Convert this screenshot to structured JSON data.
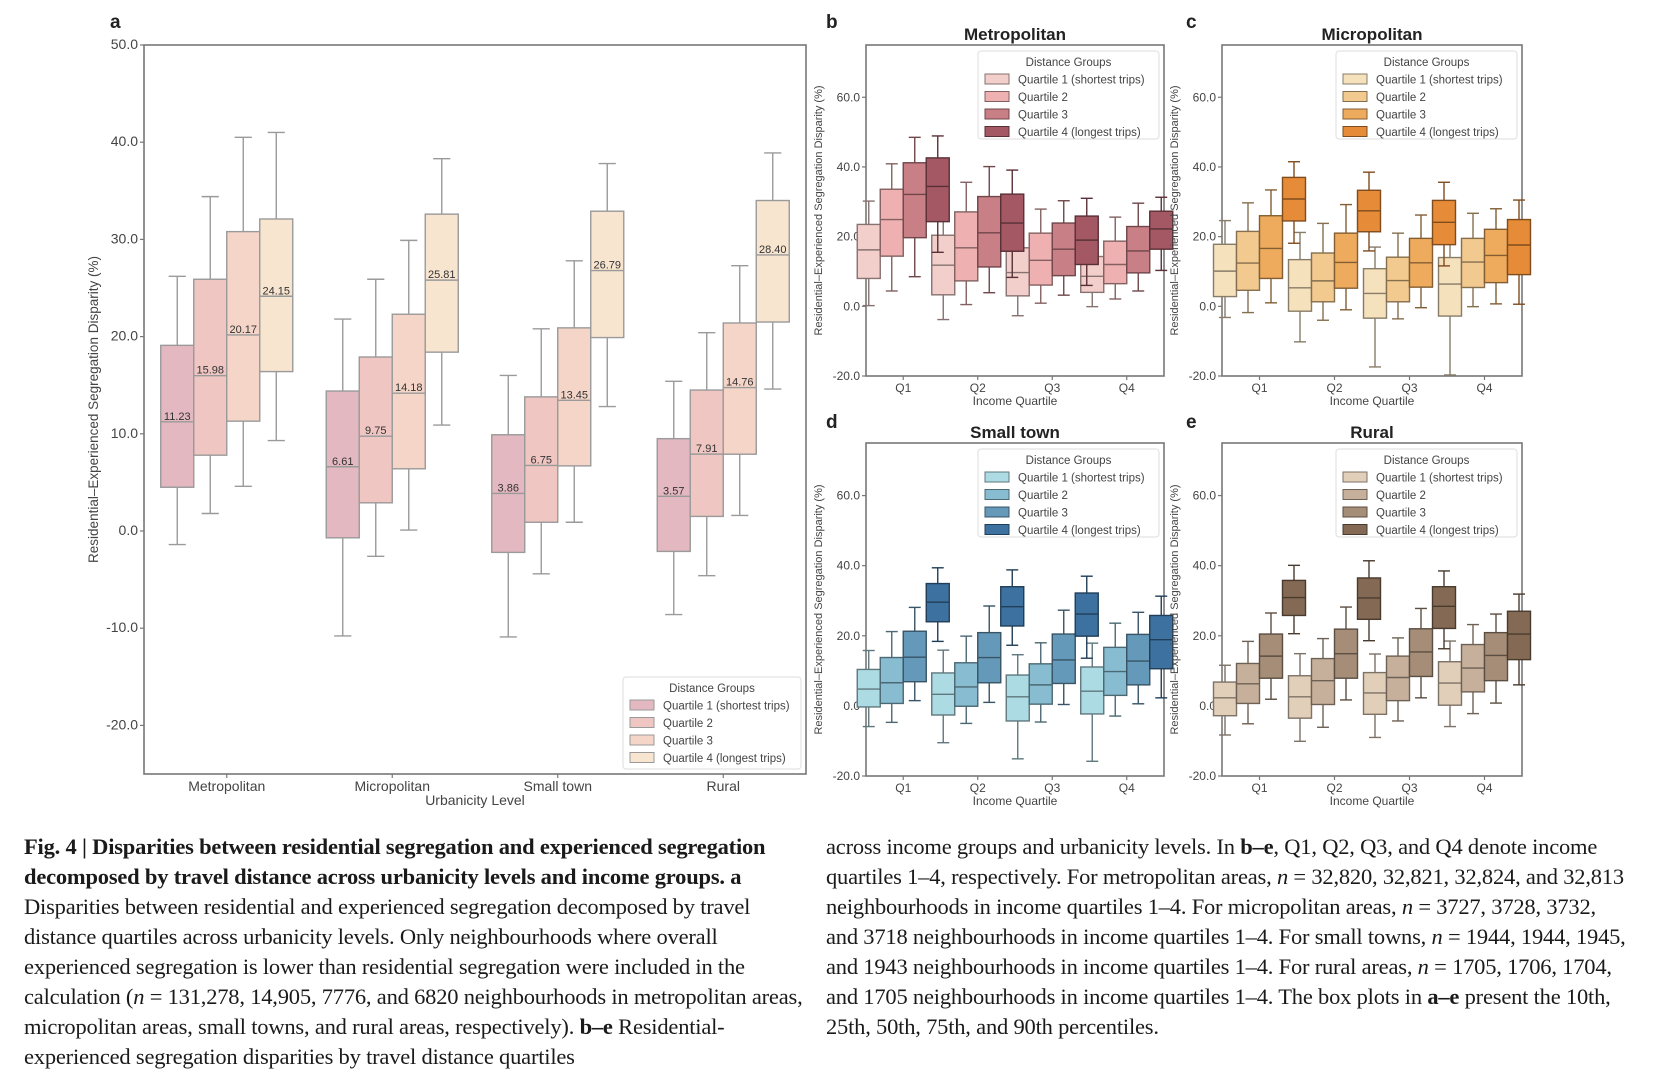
{
  "figure": {
    "caption_left": {
      "title": "Fig. 4 | Disparities between residential segregation and experienced segregation decomposed by travel distance across urbanicity levels and income groups.",
      "a_label": "a",
      "a_text": "Disparities between residential and experienced segregation decomposed by travel distance quartiles across urbanicity levels. Only neighbourhoods where overall experienced segregation is lower than residential segregation were included in the calculation (",
      "n_symbol": "n",
      "a_counts": " = 131,278, 14,905, 7776, and 6820 neighbourhoods in metropolitan areas, micropolitan areas, small towns, and rural areas, respectively).",
      "be_label": "b–e",
      "be_text": "Residential-experienced segregation disparities by travel distance quartiles"
    },
    "caption_right": {
      "p1": "across income groups and urbanicity levels. In ",
      "be_label": "b–e",
      "p2": ", Q1, Q2, Q3, and Q4 denote income quartiles 1–4, respectively. For metropolitan areas, ",
      "n1": "n",
      "p3": " = 32,820, 32,821, 32,824, and 32,813 neighbourhoods in income quartiles 1–4. For micropolitan areas, ",
      "n2": "n",
      "p4": " = 3727, 3728, 3732, and 3718 neighbourhoods in income quartiles 1–4. For small towns, ",
      "n3": "n",
      "p5": " = 1944, 1944, 1945, and 1943 neighbourhoods in income quartiles 1–4. For rural areas, ",
      "n4": "n",
      "p6": " = 1705, 1706, 1704, and 1705 neighbourhoods in income quartiles 1–4. The box plots in ",
      "ae_label": "a–e",
      "p7": " present the 10th, 25th, 50th, 75th, and 90th percentiles."
    }
  },
  "chart_data": [
    {
      "panel": "a",
      "type": "box",
      "title": "",
      "xlabel": "Urbanicity Level",
      "ylabel": "Residential–Experienced Segregation Disparity (%)",
      "ylim": [
        -25,
        50
      ],
      "yticks": [
        -20.0,
        -10.0,
        0.0,
        10.0,
        20.0,
        30.0,
        40.0,
        50.0
      ],
      "categories": [
        "Metropolitan",
        "Micropolitan",
        "Small town",
        "Rural"
      ],
      "show_median_labels": true,
      "legend": {
        "title": "Distance Groups",
        "position": "lower-right"
      },
      "series": [
        {
          "name": "Quartile 1 (shortest trips)",
          "color": "#e3b8c1",
          "boxes": [
            [
              -1.4,
              4.5,
              11.23,
              19.1,
              26.2
            ],
            [
              -10.8,
              -0.7,
              6.61,
              14.4,
              21.8
            ],
            [
              -10.9,
              -2.2,
              3.86,
              9.9,
              16.0
            ],
            [
              -8.6,
              -2.1,
              3.57,
              9.5,
              15.4
            ]
          ]
        },
        {
          "name": "Quartile 2",
          "color": "#efc6c2",
          "boxes": [
            [
              1.8,
              7.8,
              15.98,
              25.9,
              34.4
            ],
            [
              -2.6,
              2.9,
              9.75,
              17.9,
              25.9
            ],
            [
              -4.4,
              0.9,
              6.75,
              13.8,
              20.8
            ],
            [
              -4.6,
              1.5,
              7.91,
              14.5,
              20.4
            ]
          ]
        },
        {
          "name": "Quartile 3",
          "color": "#f5d5c8",
          "boxes": [
            [
              4.6,
              11.3,
              20.17,
              30.8,
              40.5
            ],
            [
              0.1,
              6.4,
              14.18,
              22.3,
              29.9
            ],
            [
              0.9,
              6.7,
              13.45,
              20.9,
              27.8
            ],
            [
              1.6,
              7.9,
              14.76,
              21.4,
              27.3
            ]
          ]
        },
        {
          "name": "Quartile 4 (longest trips)",
          "color": "#f8e5cf",
          "boxes": [
            [
              9.3,
              16.4,
              24.15,
              32.1,
              41.0
            ],
            [
              10.9,
              18.4,
              25.81,
              32.6,
              38.3
            ],
            [
              12.8,
              19.9,
              26.79,
              32.9,
              37.8
            ],
            [
              14.6,
              21.5,
              28.4,
              34.0,
              38.9
            ]
          ]
        }
      ]
    },
    {
      "panel": "b",
      "type": "box",
      "title": "Metropolitan",
      "xlabel": "Income Quartile",
      "ylabel": "Residential–Experienced Segregation Disparity (%)",
      "ylim": [
        -20,
        75
      ],
      "yticks": [
        -20.0,
        0.0,
        20.0,
        40.0,
        60.0
      ],
      "categories": [
        "Q1",
        "Q2",
        "Q3",
        "Q4"
      ],
      "legend": {
        "title": "Distance Groups",
        "position": "top-right"
      },
      "series": [
        {
          "name": "Quartile 1 (shortest trips)",
          "color": "#f3cfcc",
          "boxes": [
            [
              0.2,
              8.0,
              16.2,
              23.5,
              30.2
            ],
            [
              -3.8,
              3.3,
              11.8,
              20.4,
              27.9
            ],
            [
              -2.7,
              3.0,
              9.7,
              16.8,
              23.1
            ],
            [
              -0.1,
              4.0,
              8.6,
              14.3,
              20.7
            ]
          ]
        },
        {
          "name": "Quartile 2",
          "color": "#eeb0b1",
          "boxes": [
            [
              4.4,
              14.4,
              24.9,
              33.6,
              40.9
            ],
            [
              0.5,
              7.3,
              16.8,
              27.1,
              35.6
            ],
            [
              0.9,
              6.1,
              13.2,
              21.0,
              27.9
            ],
            [
              2.1,
              6.5,
              12.0,
              18.7,
              25.6
            ]
          ]
        },
        {
          "name": "Quartile 3",
          "color": "#c97f86",
          "boxes": [
            [
              8.5,
              19.7,
              32.1,
              41.2,
              48.5
            ],
            [
              3.9,
              11.3,
              21.1,
              31.5,
              40.1
            ],
            [
              3.2,
              8.8,
              16.4,
              23.9,
              30.3
            ],
            [
              4.4,
              9.6,
              15.9,
              22.9,
              29.6
            ]
          ]
        },
        {
          "name": "Quartile 4 (longest trips)",
          "color": "#a35864",
          "boxes": [
            [
              15.5,
              24.3,
              34.4,
              42.6,
              48.9
            ],
            [
              8.3,
              15.8,
              23.9,
              32.2,
              39.1
            ],
            [
              6.0,
              12.0,
              19.0,
              25.9,
              31.0
            ],
            [
              10.3,
              16.4,
              22.2,
              27.3,
              31.3
            ]
          ]
        }
      ]
    },
    {
      "panel": "c",
      "type": "box",
      "title": "Micropolitan",
      "xlabel": "Income Quartile",
      "ylabel": "Residential–Experienced Segregation Disparity (%)",
      "ylim": [
        -20,
        75
      ],
      "yticks": [
        -20.0,
        0.0,
        20.0,
        40.0,
        60.0
      ],
      "categories": [
        "Q1",
        "Q2",
        "Q3",
        "Q4"
      ],
      "legend": {
        "title": "Distance Groups",
        "position": "top-right"
      },
      "series": [
        {
          "name": "Quartile 1 (shortest trips)",
          "color": "#f6e1bd",
          "boxes": [
            [
              -3.2,
              2.8,
              10.1,
              17.8,
              24.6
            ],
            [
              -10.2,
              -1.4,
              5.3,
              13.4,
              21.2
            ],
            [
              -17.4,
              -3.4,
              3.7,
              10.8,
              17.0
            ],
            [
              -19.7,
              -2.8,
              6.4,
              14.0,
              20.6
            ]
          ]
        },
        {
          "name": "Quartile 2",
          "color": "#f2c98e",
          "boxes": [
            [
              -1.8,
              4.6,
              12.4,
              21.5,
              29.7
            ],
            [
              -4.0,
              1.3,
              7.3,
              15.3,
              23.8
            ],
            [
              -3.6,
              1.3,
              7.4,
              14.1,
              21.0
            ],
            [
              -0.1,
              5.4,
              12.7,
              19.5,
              26.7
            ]
          ]
        },
        {
          "name": "Quartile 3",
          "color": "#eeab5d",
          "boxes": [
            [
              1.0,
              8.0,
              16.6,
              26.0,
              33.4
            ],
            [
              -1.0,
              5.2,
              12.6,
              21.0,
              29.2
            ],
            [
              -0.4,
              5.5,
              12.5,
              19.5,
              26.2
            ],
            [
              0.7,
              6.8,
              14.6,
              22.1,
              28.0
            ]
          ]
        },
        {
          "name": "Quartile 4 (longest trips)",
          "color": "#e68b37",
          "boxes": [
            [
              18.1,
              24.5,
              30.8,
              37.0,
              41.5
            ],
            [
              15.9,
              21.4,
              27.4,
              33.3,
              38.5
            ],
            [
              11.6,
              17.7,
              24.1,
              30.4,
              35.6
            ],
            [
              0.6,
              9.1,
              17.6,
              24.9,
              30.5
            ]
          ]
        }
      ]
    },
    {
      "panel": "d",
      "type": "box",
      "title": "Small town",
      "xlabel": "Income Quartile",
      "ylabel": "Residential–Experienced Segregation Disparity (%)",
      "ylim": [
        -20,
        75
      ],
      "yticks": [
        -20.0,
        0.0,
        20.0,
        40.0,
        60.0
      ],
      "categories": [
        "Q1",
        "Q2",
        "Q3",
        "Q4"
      ],
      "legend": {
        "title": "Distance Groups",
        "position": "top-right"
      },
      "series": [
        {
          "name": "Quartile 1 (shortest trips)",
          "color": "#acdbe3",
          "boxes": [
            [
              -5.9,
              -0.3,
              4.8,
              10.4,
              15.8
            ],
            [
              -10.5,
              -2.6,
              3.3,
              9.4,
              15.9
            ],
            [
              -15.1,
              -4.3,
              2.6,
              8.8,
              14.6
            ],
            [
              -15.8,
              -2.3,
              4.2,
              11.1,
              17.9
            ]
          ]
        },
        {
          "name": "Quartile 2",
          "color": "#88bdd1",
          "boxes": [
            [
              -4.7,
              0.7,
              6.6,
              13.8,
              21.2
            ],
            [
              -5.0,
              -0.1,
              5.4,
              12.3,
              19.9
            ],
            [
              -4.6,
              0.5,
              6.0,
              12.0,
              18.0
            ],
            [
              -2.9,
              3.0,
              9.8,
              16.7,
              23.6
            ]
          ]
        },
        {
          "name": "Quartile 3",
          "color": "#6599b9",
          "boxes": [
            [
              1.5,
              6.9,
              13.9,
              21.3,
              28.1
            ],
            [
              1.0,
              6.6,
              13.8,
              20.9,
              28.5
            ],
            [
              0.4,
              6.4,
              13.1,
              20.5,
              27.3
            ],
            [
              0.6,
              6.0,
              12.8,
              20.4,
              26.7
            ]
          ]
        },
        {
          "name": "Quartile 4 (longest trips)",
          "color": "#3c71a0",
          "boxes": [
            [
              18.4,
              24.0,
              29.6,
              34.9,
              39.4
            ],
            [
              17.3,
              22.8,
              28.3,
              34.0,
              38.8
            ],
            [
              13.6,
              19.9,
              26.2,
              32.2,
              37.0
            ],
            [
              2.3,
              10.6,
              18.9,
              25.8,
              31.3
            ]
          ]
        }
      ]
    },
    {
      "panel": "e",
      "type": "box",
      "title": "Rural",
      "xlabel": "Income Quartile",
      "ylabel": "Residential–Experienced Segregation Disparity (%)",
      "ylim": [
        -20,
        75
      ],
      "yticks": [
        -20.0,
        0.0,
        20.0,
        40.0,
        60.0
      ],
      "categories": [
        "Q1",
        "Q2",
        "Q3",
        "Q4"
      ],
      "legend": {
        "title": "Distance Groups",
        "position": "top-right"
      },
      "series": [
        {
          "name": "Quartile 1 (shortest trips)",
          "color": "#e2cfb9",
          "boxes": [
            [
              -8.3,
              -2.8,
              2.3,
              6.8,
              11.6
            ],
            [
              -10.1,
              -3.5,
              2.6,
              8.6,
              14.9
            ],
            [
              -9.0,
              -2.4,
              3.7,
              9.5,
              14.8
            ],
            [
              -5.9,
              0.2,
              6.5,
              12.6,
              18.5
            ]
          ]
        },
        {
          "name": "Quartile 2",
          "color": "#c7b09b",
          "boxes": [
            [
              -5.1,
              0.7,
              6.3,
              12.1,
              18.4
            ],
            [
              -6.1,
              0.4,
              7.2,
              13.5,
              19.2
            ],
            [
              -4.3,
              1.5,
              8.1,
              14.2,
              19.4
            ],
            [
              -2.2,
              4.0,
              10.8,
              17.5,
              23.2
            ]
          ]
        },
        {
          "name": "Quartile 3",
          "color": "#a68d78",
          "boxes": [
            [
              1.9,
              7.9,
              14.2,
              20.5,
              26.5
            ],
            [
              1.7,
              7.9,
              14.9,
              21.9,
              28.2
            ],
            [
              2.3,
              8.4,
              15.4,
              22.0,
              27.8
            ],
            [
              0.8,
              7.2,
              14.4,
              20.9,
              26.2
            ]
          ]
        },
        {
          "name": "Quartile 4 (longest trips)",
          "color": "#846a54",
          "boxes": [
            [
              20.6,
              25.8,
              30.9,
              35.8,
              40.1
            ],
            [
              18.6,
              24.7,
              30.8,
              36.5,
              41.4
            ],
            [
              16.3,
              22.1,
              28.4,
              34.0,
              38.5
            ],
            [
              6.0,
              13.2,
              20.5,
              27.0,
              31.9
            ]
          ]
        }
      ]
    }
  ],
  "panel_labels": [
    "a",
    "b",
    "c",
    "d",
    "e"
  ]
}
